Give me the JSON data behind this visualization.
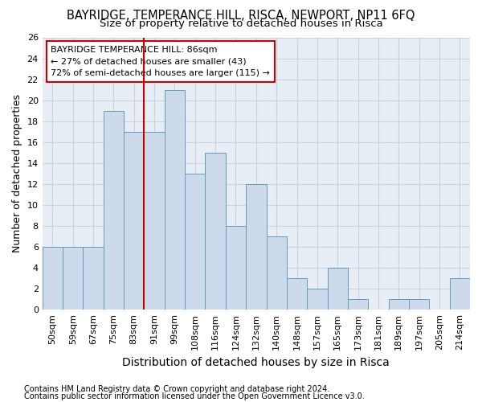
{
  "title": "BAYRIDGE, TEMPERANCE HILL, RISCA, NEWPORT, NP11 6FQ",
  "subtitle": "Size of property relative to detached houses in Risca",
  "xlabel": "Distribution of detached houses by size in Risca",
  "ylabel": "Number of detached properties",
  "footer_line1": "Contains HM Land Registry data © Crown copyright and database right 2024.",
  "footer_line2": "Contains public sector information licensed under the Open Government Licence v3.0.",
  "categories": [
    "50sqm",
    "59sqm",
    "67sqm",
    "75sqm",
    "83sqm",
    "91sqm",
    "99sqm",
    "108sqm",
    "116sqm",
    "124sqm",
    "132sqm",
    "140sqm",
    "148sqm",
    "157sqm",
    "165sqm",
    "173sqm",
    "181sqm",
    "189sqm",
    "197sqm",
    "205sqm",
    "214sqm"
  ],
  "values": [
    6,
    6,
    6,
    19,
    17,
    17,
    21,
    13,
    15,
    8,
    12,
    7,
    3,
    2,
    4,
    1,
    0,
    1,
    1,
    0,
    3
  ],
  "bar_color": "#ccdaeb",
  "bar_edge_color": "#6699bb",
  "bar_edge_width": 0.7,
  "marker_color": "#cc0000",
  "marker_linewidth": 1.5,
  "ylim": [
    0,
    26
  ],
  "yticks": [
    0,
    2,
    4,
    6,
    8,
    10,
    12,
    14,
    16,
    18,
    20,
    22,
    24,
    26
  ],
  "grid_color": "#aabbcc",
  "grid_alpha": 0.5,
  "plot_bg_color": "#e8eef5",
  "annotation_title": "BAYRIDGE TEMPERANCE HILL: 86sqm",
  "annotation_line1": "← 27% of detached houses are smaller (43)",
  "annotation_line2": "72% of semi-detached houses are larger (115) →",
  "annotation_box_color": "#ffffff",
  "annotation_box_edge": "#cc0000",
  "title_fontsize": 10.5,
  "subtitle_fontsize": 9.5,
  "ylabel_fontsize": 9,
  "xlabel_fontsize": 10,
  "tick_fontsize": 8,
  "annotation_fontsize": 8,
  "footer_fontsize": 7
}
